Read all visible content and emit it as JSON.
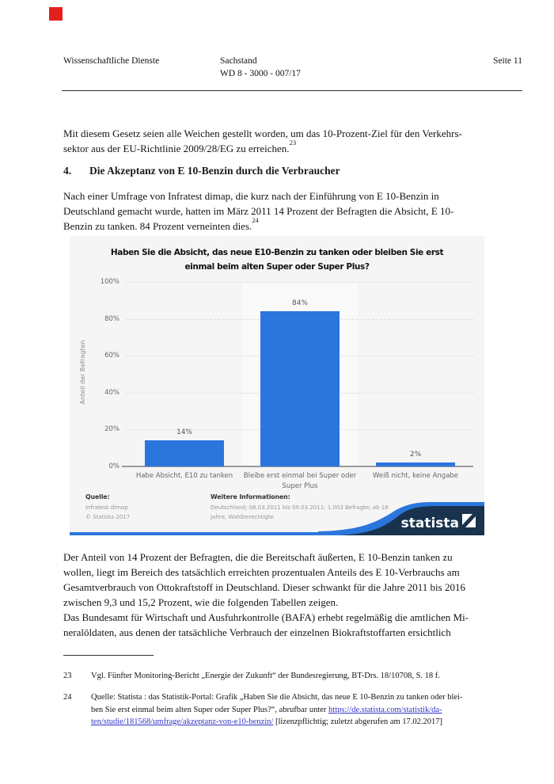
{
  "page": {
    "marker_color": "#e2211c"
  },
  "header": {
    "left": "Wissenschaftliche Dienste",
    "center_line1": "Sachstand",
    "center_line2": "WD 8 - 3000 - 007/17",
    "right": "Seite 11"
  },
  "body": {
    "p1": {
      "text": "Mit diesem Gesetz seien alle Weichen gestellt worden, um das 10-Prozent-Ziel für den Verkehrs-\nsektor aus der EU-Richtlinie 2009/28/EG zu erreichen.",
      "sup": "23"
    },
    "heading": {
      "num": "4.",
      "title": "Die Akzeptanz von E 10-Benzin durch die Verbraucher"
    },
    "p2": {
      "text": "Nach einer Umfrage von Infratest dimap, die kurz nach der Einführung von E 10-Benzin in\nDeutschland gemacht wurde, hatten im März 2011 14 Prozent der Befragten die Absicht, E 10-\nBenzin zu tanken. 84 Prozent verneinten dies.",
      "sup": "24"
    },
    "p3": {
      "text": "Der Anteil von 14 Prozent der Befragten, die die Bereitschaft äußerten, E 10-Benzin tanken zu\nwollen, liegt im Bereich des tatsächlich erreichten prozentualen Anteils des E 10-Verbrauchs am\nGesamtverbrauch von Ottokraftstoff in Deutschland. Dieser schwankt für die Jahre 2011 bis 2016\nzwischen 9,3 und 15,2 Prozent, wie die folgenden Tabellen zeigen."
    },
    "p4": {
      "text": "Das Bundesamt für Wirtschaft und Ausfuhrkontrolle (BAFA) erhebt regelmäßig die amtlichen Mi-\nneralöldaten, aus denen der tatsächliche Verbrauch der einzelnen Biokraftstoffarten ersichtlich"
    }
  },
  "chart": {
    "title_display": "Haben Sie die Absicht, das neue E10-Benzin zu tanken oder bleiben Sie erst\neinmal beim alten Super oder Super Plus?",
    "ylabel": "Anteil der Befragten",
    "yticks": [
      "100%",
      "80%",
      "60%",
      "40%",
      "20%",
      "0%"
    ],
    "colors": {
      "bar": "#2b76dd",
      "brand_navy": "#19334f",
      "brand_blue": "#2b76dd"
    },
    "chart_data": {
      "type": "bar",
      "title": "Haben Sie die Absicht, das neue E10-Benzin zu tanken oder bleiben Sie erst einmal beim alten Super oder Super Plus?",
      "categories": [
        "Habe Absicht, E10 zu tanken",
        "Bleibe erst einmal bei Super oder\nSuper Plus",
        "Weiß nicht, keine Angabe"
      ],
      "values": [
        14,
        84,
        2
      ],
      "value_labels": [
        "14%",
        "84%",
        "2%"
      ],
      "xlabel": "",
      "ylabel": "Anteil der Befragten",
      "ylim": [
        0,
        100
      ],
      "grid": true,
      "legend": false
    },
    "footer": {
      "quelle_label": "Quelle:",
      "quelle_text": "Infratest dimap\n© Statista 2017",
      "info_label": "Weitere Informationen:",
      "info_text": "Deutschland; 08.03.2011 bis 09.03.2011; 1.003 Befragte; ab 18\nJahre; Wahlberechtigte",
      "brand": "statista"
    }
  },
  "footnotes": {
    "fn23": {
      "num": "23",
      "text": "Vgl. Fünfter Monitoring-Bericht „Energie der Zukunft“ der Bundesregierung, BT-Drs. 18/10708, S. 18 f."
    },
    "fn24": {
      "num": "24",
      "pre": "Quelle: Statista : das Statistik-Portal: Grafik „Haben Sie die Absicht, das neue E 10-Benzin zu tanken oder blei-\nben Sie erst einmal beim alten Super oder Super Plus?“, abrufbar unter ",
      "link": "https://de.statista.com/statistik/da-\nten/studie/181568/umfrage/akzeptanz-von-e10-benzin/",
      "post": " [lizenzpflichtig; zuletzt abgerufen am 17.02.2017]"
    }
  }
}
